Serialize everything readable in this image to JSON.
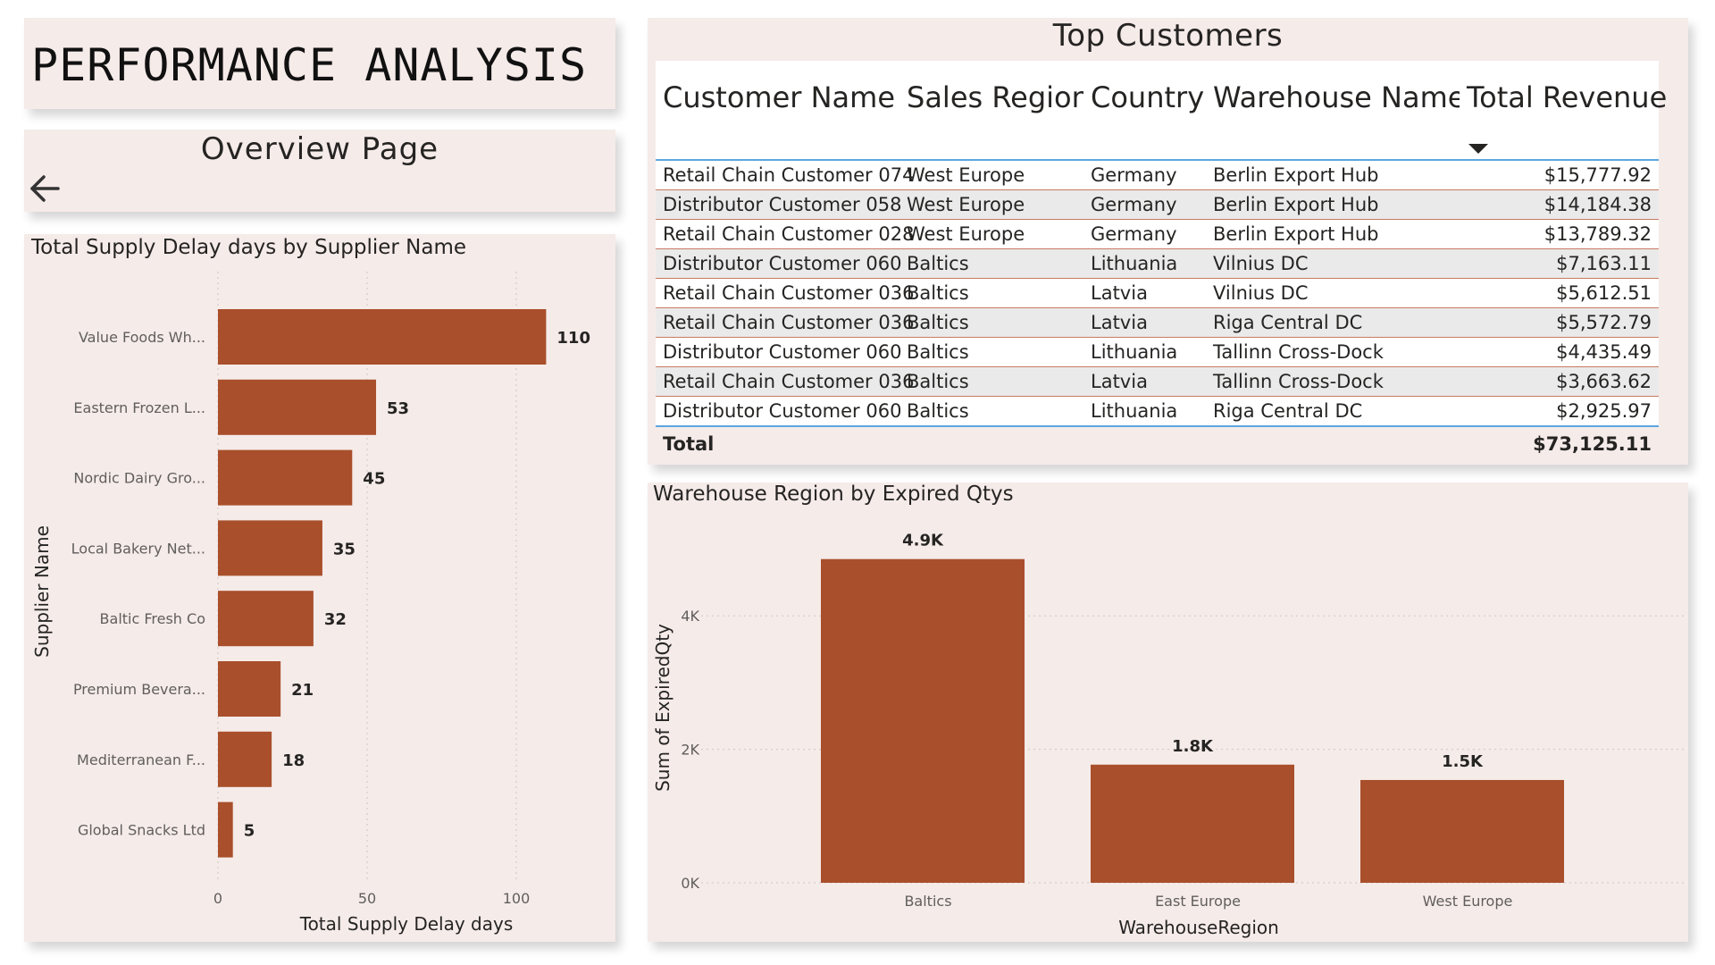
{
  "header": {
    "title": "PERFORMANCE ANALYSIS",
    "subtitle": "Overview Page",
    "back_icon": "arrow-left-icon"
  },
  "colors": {
    "bar": "#a94f2b",
    "card_bg": "#f5ebe9",
    "accent_line": "#5aa7e0"
  },
  "top_customers": {
    "title": "Top Customers",
    "columns": [
      "Customer Name",
      "Sales Region",
      "Country",
      "Warehouse Name",
      "Total Revenue"
    ],
    "sorted_column": "Total Revenue",
    "sort_direction": "descending",
    "rows": [
      [
        "Retail Chain Customer 074",
        "West Europe",
        "Germany",
        "Berlin Export Hub",
        "$15,777.92"
      ],
      [
        "Distributor Customer 058",
        "West Europe",
        "Germany",
        "Berlin Export Hub",
        "$14,184.38"
      ],
      [
        "Retail Chain Customer 028",
        "West Europe",
        "Germany",
        "Berlin Export Hub",
        "$13,789.32"
      ],
      [
        "Distributor Customer 060",
        "Baltics",
        "Lithuania",
        "Vilnius DC",
        "$7,163.11"
      ],
      [
        "Retail Chain Customer 036",
        "Baltics",
        "Latvia",
        "Vilnius DC",
        "$5,612.51"
      ],
      [
        "Retail Chain Customer 036",
        "Baltics",
        "Latvia",
        "Riga Central DC",
        "$5,572.79"
      ],
      [
        "Distributor Customer 060",
        "Baltics",
        "Lithuania",
        "Tallinn Cross-Dock",
        "$4,435.49"
      ],
      [
        "Retail Chain Customer 036",
        "Baltics",
        "Latvia",
        "Tallinn Cross-Dock",
        "$3,663.62"
      ],
      [
        "Distributor Customer 060",
        "Baltics",
        "Lithuania",
        "Riga Central DC",
        "$2,925.97"
      ]
    ],
    "total_label": "Total",
    "total_value": "$73,125.11"
  },
  "chart_data": [
    {
      "type": "bar",
      "orientation": "horizontal",
      "title": "Total Supply Delay days by Supplier Name",
      "xlabel": "Total Supply Delay days",
      "ylabel": "Supplier Name",
      "categories": [
        "Value Foods Wh...",
        "Eastern Frozen L...",
        "Nordic Dairy Gro...",
        "Local Bakery Net...",
        "Baltic Fresh Co",
        "Premium Bevera...",
        "Mediterranean F...",
        "Global Snacks Ltd"
      ],
      "values": [
        110,
        53,
        45,
        35,
        32,
        21,
        18,
        5
      ],
      "data_labels": [
        "110",
        "53",
        "45",
        "35",
        "32",
        "21",
        "18",
        "5"
      ],
      "xticks": [
        0,
        50,
        100
      ],
      "xtick_labels": [
        "0",
        "50",
        "100"
      ],
      "xlim": [
        0,
        120
      ],
      "grid": "vertical dotted"
    },
    {
      "type": "bar",
      "orientation": "vertical",
      "title": "Warehouse Region by Expired Qtys",
      "xlabel": "WarehouseRegion",
      "ylabel": "Sum of ExpiredQty",
      "categories": [
        "Baltics",
        "East Europe",
        "West Europe"
      ],
      "values": [
        4850,
        1770,
        1540
      ],
      "data_labels": [
        "4.9K",
        "1.8K",
        "1.5K"
      ],
      "yticks": [
        0,
        2000,
        4000
      ],
      "ytick_labels": [
        "0K",
        "2K",
        "4K"
      ],
      "ylim": [
        0,
        5300
      ],
      "grid": "horizontal dotted"
    }
  ]
}
